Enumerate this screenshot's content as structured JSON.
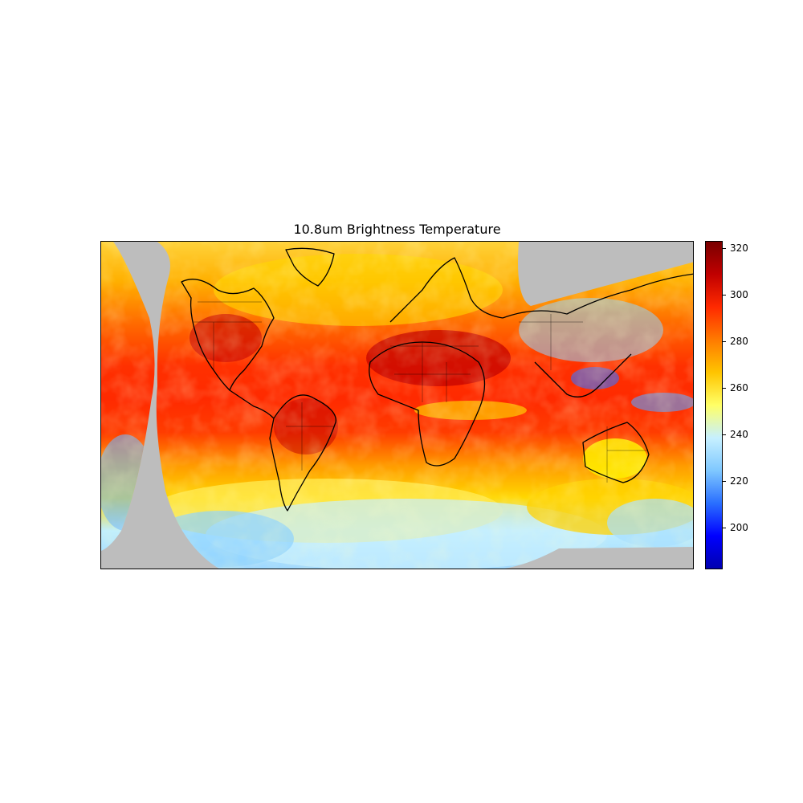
{
  "figure": {
    "title": "10.8um Brightness Temperature"
  },
  "map": {
    "projection": "equirectangular (global, two satellite disks)",
    "missing_color": "#bdbdbd",
    "coastline_color": "#000000"
  },
  "colorbar": {
    "colormap": "jet",
    "vmin": 182,
    "vmax": 323,
    "ticks": [
      {
        "value": 200,
        "label": "200"
      },
      {
        "value": 220,
        "label": "220"
      },
      {
        "value": 240,
        "label": "240"
      },
      {
        "value": 260,
        "label": "260"
      },
      {
        "value": 280,
        "label": "280"
      },
      {
        "value": 300,
        "label": "300"
      },
      {
        "value": 320,
        "label": "320"
      }
    ],
    "stops": [
      "#0000b0",
      "#0000ff",
      "#2a6fff",
      "#7fc8ff",
      "#c7f0ff",
      "#ffff66",
      "#ffc400",
      "#ff7a00",
      "#ff2a00",
      "#c00000",
      "#7a0000"
    ]
  }
}
